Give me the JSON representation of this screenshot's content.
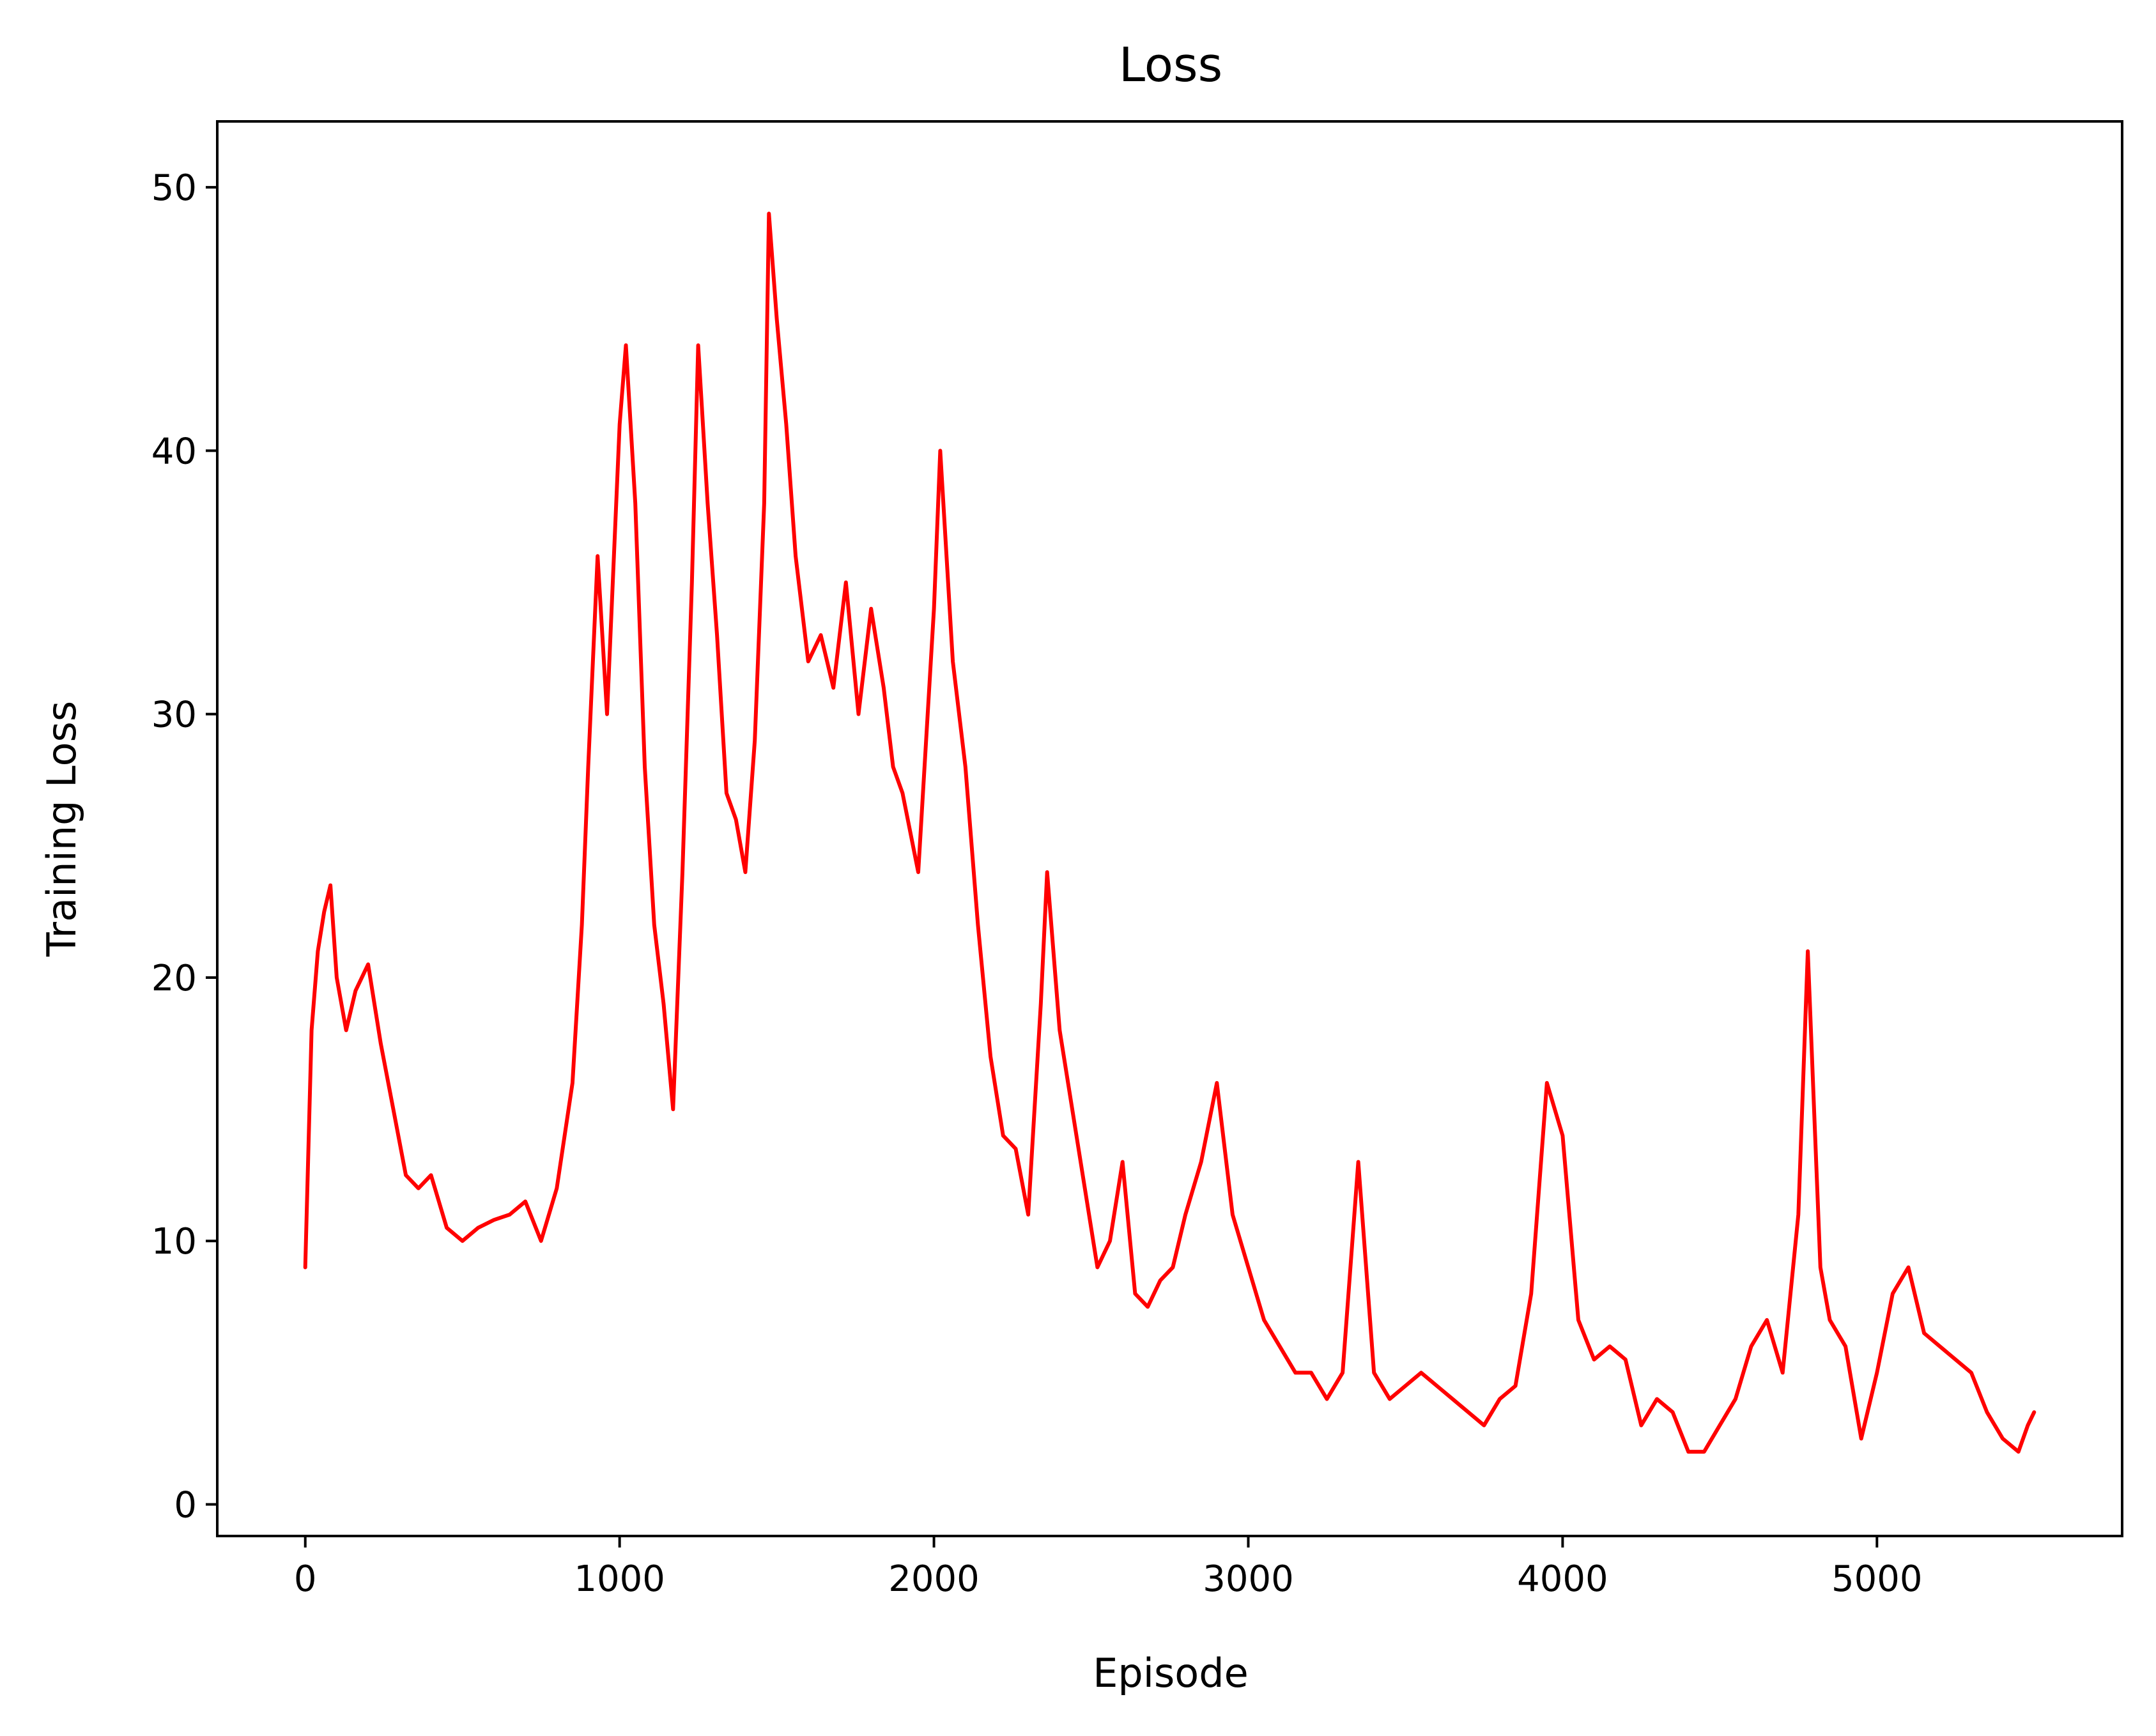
{
  "chart_data": {
    "type": "line",
    "title": "Loss",
    "xlabel": "Episode",
    "ylabel": "Training Loss",
    "xlim": [
      -280,
      5780
    ],
    "ylim": [
      -1.2,
      52.5
    ],
    "xticks": [
      0,
      1000,
      2000,
      3000,
      4000,
      5000
    ],
    "yticks": [
      0,
      10,
      20,
      30,
      40,
      50
    ],
    "grid": false,
    "legend": "none",
    "series": [
      {
        "color": "#ff0000",
        "x": [
          0,
          20,
          40,
          60,
          80,
          100,
          130,
          160,
          200,
          240,
          280,
          320,
          360,
          400,
          450,
          500,
          550,
          600,
          650,
          700,
          750,
          800,
          850,
          880,
          900,
          930,
          960,
          1000,
          1020,
          1050,
          1080,
          1110,
          1140,
          1170,
          1200,
          1230,
          1250,
          1280,
          1310,
          1340,
          1370,
          1400,
          1430,
          1460,
          1475,
          1500,
          1530,
          1560,
          1600,
          1640,
          1680,
          1720,
          1760,
          1800,
          1840,
          1870,
          1900,
          1950,
          2000,
          2020,
          2060,
          2100,
          2140,
          2180,
          2220,
          2260,
          2300,
          2340,
          2360,
          2400,
          2440,
          2480,
          2520,
          2560,
          2600,
          2640,
          2680,
          2720,
          2760,
          2800,
          2850,
          2900,
          2950,
          3000,
          3050,
          3100,
          3150,
          3200,
          3250,
          3300,
          3350,
          3400,
          3450,
          3500,
          3550,
          3600,
          3650,
          3700,
          3750,
          3800,
          3850,
          3900,
          3950,
          4000,
          4050,
          4100,
          4150,
          4200,
          4250,
          4300,
          4350,
          4400,
          4450,
          4500,
          4550,
          4600,
          4650,
          4700,
          4750,
          4780,
          4800,
          4820,
          4850,
          4900,
          4950,
          5000,
          5050,
          5100,
          5150,
          5200,
          5250,
          5300,
          5350,
          5400,
          5450,
          5480,
          5500
        ],
        "y": [
          9,
          18,
          21,
          22.5,
          23.5,
          20,
          18,
          19.5,
          20.5,
          17.5,
          15,
          12.5,
          12,
          12.5,
          10.5,
          10,
          10.5,
          10.8,
          11,
          11.5,
          10,
          12,
          16,
          22,
          28,
          36,
          30,
          41,
          44,
          38,
          28,
          22,
          19,
          15,
          24,
          35,
          44,
          38,
          33,
          27,
          26,
          24,
          29,
          38,
          49,
          45,
          41,
          36,
          32,
          33,
          31,
          35,
          30,
          34,
          31,
          28,
          27,
          24,
          34,
          40,
          32,
          28,
          22,
          17,
          14,
          13.5,
          11,
          19,
          24,
          18,
          15,
          12,
          9,
          10,
          13,
          8,
          7.5,
          8.5,
          9,
          11,
          13,
          16,
          11,
          9,
          7,
          6,
          5,
          5,
          4,
          5,
          13,
          5,
          4,
          4.5,
          5,
          4.5,
          4,
          3.5,
          3,
          4,
          4.5,
          8,
          16,
          14,
          7,
          5.5,
          6,
          5.5,
          3,
          4,
          3.5,
          2,
          2,
          3,
          4,
          6,
          7,
          5,
          11,
          21,
          15,
          9,
          7,
          6,
          2.5,
          5,
          8,
          9,
          6.5,
          6,
          5.5,
          5,
          3.5,
          2.5,
          2,
          3,
          3.5
        ]
      }
    ]
  }
}
